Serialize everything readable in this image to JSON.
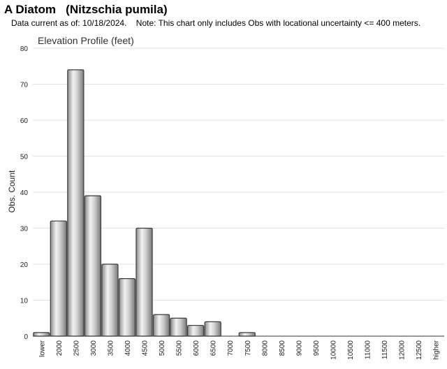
{
  "header": {
    "title": "A Diatom   (Nitzschia pumila)",
    "note": "Data current as of: 10/18/2024.    Note: This chart only includes Obs with locational uncertainty <= 400 meters."
  },
  "chart_data": {
    "type": "bar",
    "title": "Elevation Profile (feet)",
    "xlabel": "",
    "ylabel": "Obs. Count",
    "ylim": [
      0,
      80
    ],
    "yticks": [
      0,
      10,
      20,
      30,
      40,
      50,
      60,
      70,
      80
    ],
    "grid": true,
    "legend": "none",
    "bar_color": "#c8c8c8",
    "categories": [
      "lower",
      "2000",
      "2500",
      "3000",
      "3500",
      "4000",
      "4500",
      "5000",
      "5500",
      "6000",
      "6500",
      "7000",
      "7500",
      "8000",
      "8500",
      "9000",
      "9500",
      "10000",
      "10500",
      "11000",
      "11500",
      "12000",
      "12500",
      "higher"
    ],
    "values": [
      1,
      32,
      74,
      39,
      20,
      16,
      30,
      6,
      5,
      3,
      4,
      0,
      1,
      0,
      0,
      0,
      0,
      0,
      0,
      0,
      0,
      0,
      0,
      0
    ]
  }
}
